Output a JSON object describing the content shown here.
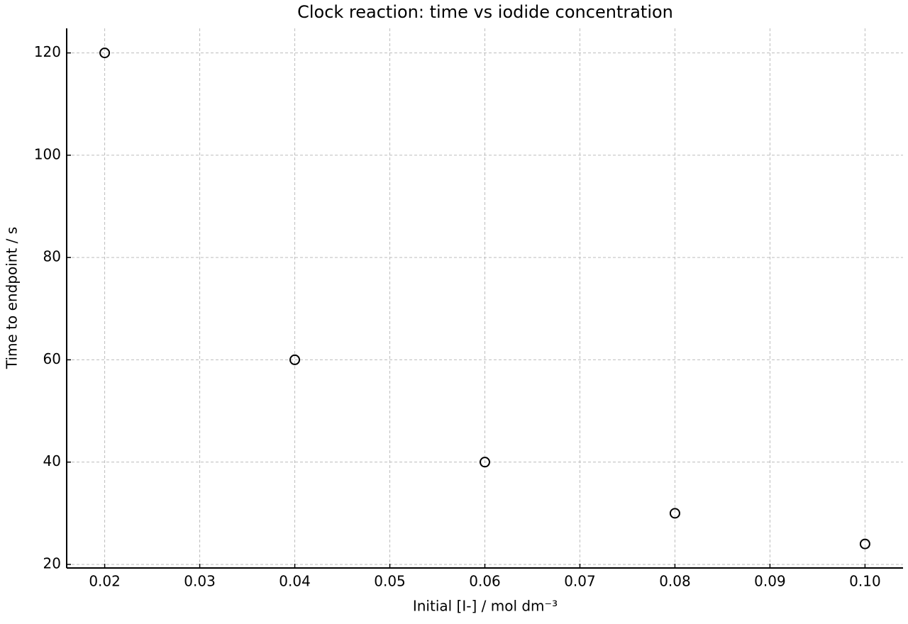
{
  "chart_data": {
    "type": "scatter",
    "title": "Clock reaction: time vs iodide concentration",
    "x_label": "Initial [I-] / mol dm⁻³",
    "y_label": "Time to endpoint / s",
    "x": [
      0.02,
      0.04,
      0.06,
      0.08,
      0.1
    ],
    "values": [
      120,
      60,
      40,
      30,
      24
    ],
    "color": "#000000",
    "xlim": [
      0.016,
      0.104
    ],
    "ylim": [
      19.3,
      124.8
    ],
    "xticks": [
      0.02,
      0.03,
      0.04,
      0.05,
      0.06,
      0.07,
      0.08,
      0.09,
      {
        "value": 0.1,
        "label": "0.10"
      }
    ],
    "yticks": [
      20,
      40,
      60,
      80,
      100,
      120
    ],
    "grid": true
  }
}
